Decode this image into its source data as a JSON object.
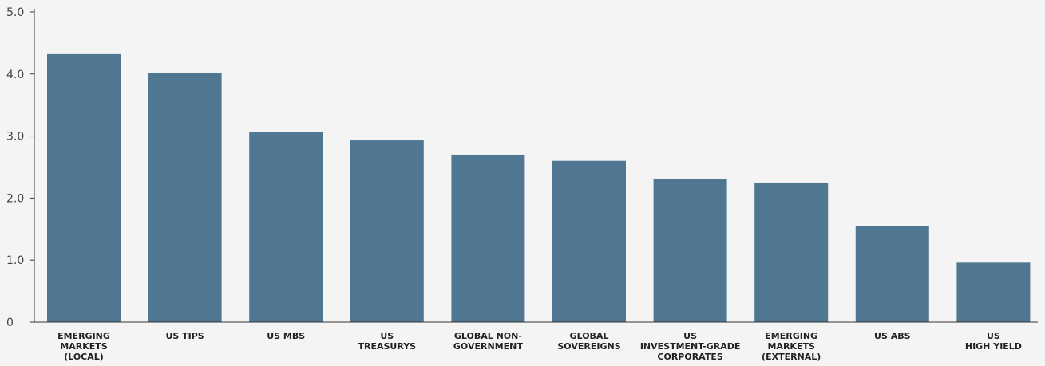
{
  "chart_data": {
    "type": "bar",
    "title": "",
    "xlabel": "",
    "ylabel": "",
    "ylim": [
      0,
      5.0
    ],
    "y_ticks": [
      "0",
      "1.0",
      "2.0",
      "3.0",
      "4.0",
      "5.0"
    ],
    "y_tick_values": [
      0,
      1,
      2,
      3,
      4,
      5
    ],
    "grid": false,
    "bar_color": "#4f7792",
    "categories": [
      [
        "EMERGING",
        "MARKETS",
        "(LOCAL)"
      ],
      [
        "US TIPS"
      ],
      [
        "US MBS"
      ],
      [
        "US",
        "TREASURYS"
      ],
      [
        "GLOBAL NON-",
        "GOVERNMENT"
      ],
      [
        "GLOBAL",
        "SOVEREIGNS"
      ],
      [
        "US",
        "INVESTMENT-GRADE",
        "CORPORATES"
      ],
      [
        "EMERGING",
        "MARKETS",
        "(EXTERNAL)"
      ],
      [
        "US ABS"
      ],
      [
        "US",
        "HIGH YIELD"
      ]
    ],
    "values": [
      4.32,
      4.02,
      3.07,
      2.93,
      2.7,
      2.6,
      2.31,
      2.25,
      1.55,
      0.96
    ]
  }
}
